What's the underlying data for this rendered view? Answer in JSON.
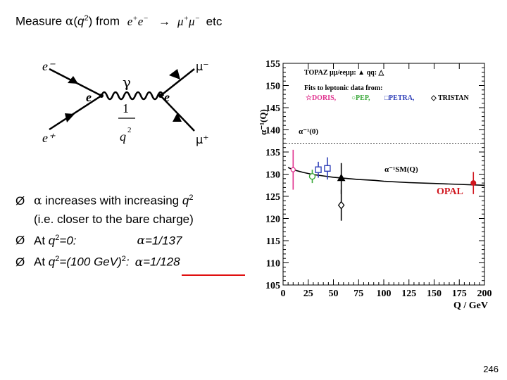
{
  "slide": {
    "title": {
      "prefix": "Measure",
      "alpha": "α",
      "open_paren": "(",
      "q": "q",
      "sup2": "2",
      "close_from": ") from",
      "e": "e",
      "plus": "+",
      "minus": "−",
      "arrow": "→",
      "mu": "μ",
      "etc": "etc"
    },
    "diagram": {
      "e_minus_in": "e⁻",
      "e_plus_in": "e⁺",
      "mu_minus_out": "μ⁻",
      "mu_plus_out": "μ⁺",
      "gamma": "γ",
      "vertex_left": "e",
      "vertex_right": "e",
      "propagator_num": "1",
      "propagator_den_q": "q",
      "propagator_den_exp": "2"
    },
    "bullets": [
      {
        "parts": [
          "α",
          " increases with increasing ",
          "q",
          "2"
        ]
      },
      {
        "parts": [
          "(i.e. closer to the bare charge)"
        ]
      },
      {
        "parts": [
          "At ",
          "q",
          "2",
          "=0:",
          "α",
          "=1/137"
        ]
      },
      {
        "parts": [
          "At ",
          "q",
          "2",
          "=(100 GeV)",
          "2",
          ":",
          "α",
          "=1/128"
        ]
      }
    ],
    "bullet_marker": "Ø",
    "page_number": "246"
  },
  "colors": {
    "accent_red": "#d0161e",
    "doris_pink": "#e0338f",
    "pep_green": "#3aa83a",
    "petra_blue": "#3040b8",
    "highlight_underline": "#e01010"
  },
  "chart_data": {
    "type": "scatter",
    "ylabel": "α⁻¹(Q)",
    "xlabel": "Q / GeV",
    "xlim": [
      0,
      200
    ],
    "ylim": [
      105,
      155
    ],
    "xticks": [
      0,
      25,
      50,
      75,
      100,
      125,
      150,
      175,
      200
    ],
    "yticks": [
      105,
      110,
      115,
      120,
      125,
      130,
      135,
      140,
      145,
      150,
      155
    ],
    "legend": {
      "line1": "TOPAZ μμ/eeμμ: ▲  qq: △",
      "line2": "Fits to leptonic data from:",
      "doris": "☆DORIS,",
      "pep": "○PEP,",
      "petra": "□PETRA,",
      "tristan": "◇ TRISTAN"
    },
    "annotations": {
      "alpha0": "α⁻¹(0)",
      "alphaSM": "α⁻¹SM(Q)",
      "opal": "OPAL"
    },
    "alpha0_value": 137,
    "sm_curve": [
      [
        5,
        131.5
      ],
      [
        10,
        131.0
      ],
      [
        20,
        130.4
      ],
      [
        30,
        129.9
      ],
      [
        40,
        129.6
      ],
      [
        50,
        129.3
      ],
      [
        60,
        129.1
      ],
      [
        75,
        128.8
      ],
      [
        91,
        128.6
      ],
      [
        100,
        128.4
      ],
      [
        125,
        128.1
      ],
      [
        150,
        127.9
      ],
      [
        175,
        127.7
      ],
      [
        200,
        127.5
      ]
    ],
    "points": [
      {
        "series": "DORIS",
        "x": 10,
        "y": 131.0,
        "yerr": 4.5,
        "color": "#e0338f",
        "marker": "star"
      },
      {
        "series": "PEP",
        "x": 29,
        "y": 129.5,
        "yerr": 1.5,
        "color": "#3aa83a",
        "marker": "circle"
      },
      {
        "series": "PETRA",
        "x": 35,
        "y": 131.0,
        "yerr": 1.8,
        "color": "#3040b8",
        "marker": "square"
      },
      {
        "series": "PETRA",
        "x": 44,
        "y": 131.3,
        "yerr": 2.5,
        "color": "#3040b8",
        "marker": "square"
      },
      {
        "series": "TRISTAN",
        "x": 57.8,
        "y": 123.0,
        "yerr": 3.5,
        "color": "#000000",
        "marker": "diamond"
      },
      {
        "series": "TOPAZ μμ/eeμμ",
        "x": 57.8,
        "y": 129.0,
        "yerr": 3.5,
        "color": "#000000",
        "marker": "triangle"
      },
      {
        "series": "OPAL",
        "x": 189,
        "y": 128.0,
        "yerr": 2.5,
        "color": "#d0161e",
        "marker": "dot"
      }
    ]
  }
}
